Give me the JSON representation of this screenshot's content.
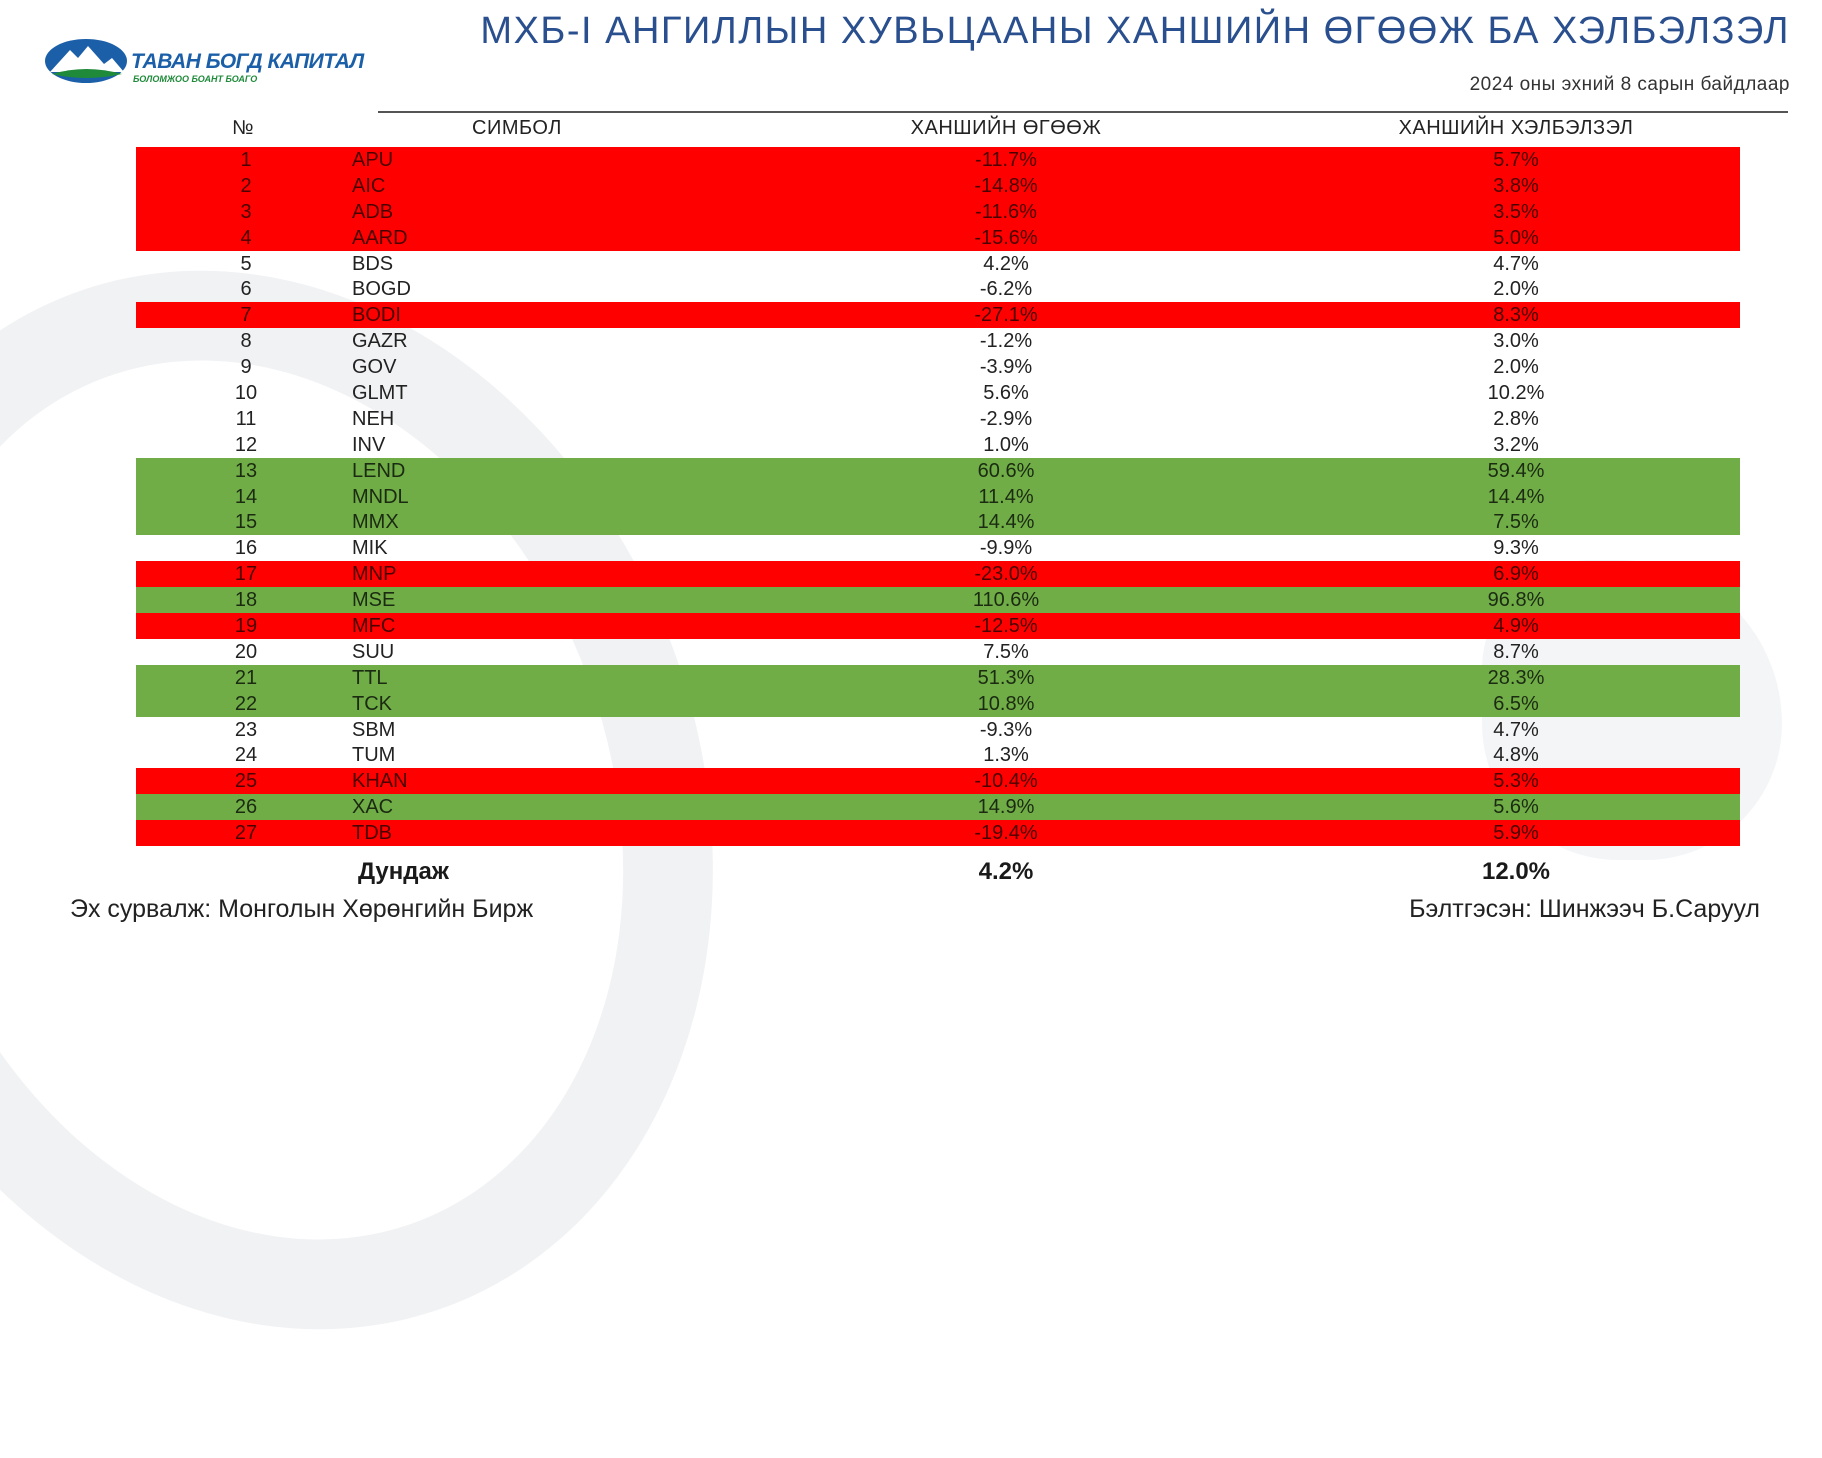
{
  "logo": {
    "brand": "ТАВАН БОГД КАПИТАЛ",
    "tagline": "БОЛОМЖОО БОАНТ БОАГО",
    "icon": "mountain-logo-icon"
  },
  "title": "МХБ-I АНГИЛЛЫН ХУВЬЦААНЫ ХАНШИЙН ӨГӨӨЖ БА ХЭЛБЭЛЗЭЛ",
  "subtitle": "2024 оны эхний 8 сарын байдлаар",
  "headers": {
    "num": "№",
    "symbol": "СИМБОЛ",
    "return": "ХАНШИЙН ӨГӨӨЖ",
    "volatility": "ХАНШИЙН ХЭЛБЭЛЗЭЛ"
  },
  "colors": {
    "red": "#ff0000",
    "green": "#70ad47",
    "title": "#2a4f8f"
  },
  "rows": [
    {
      "num": "1",
      "symbol": "APU",
      "return": "-11.7%",
      "volatility": "5.7%",
      "color": "red"
    },
    {
      "num": "2",
      "symbol": "AIC",
      "return": "-14.8%",
      "volatility": "3.8%",
      "color": "red"
    },
    {
      "num": "3",
      "symbol": "ADB",
      "return": "-11.6%",
      "volatility": "3.5%",
      "color": "red"
    },
    {
      "num": "4",
      "symbol": "AARD",
      "return": "-15.6%",
      "volatility": "5.0%",
      "color": "red"
    },
    {
      "num": "5",
      "symbol": "BDS",
      "return": "4.2%",
      "volatility": "4.7%",
      "color": "white"
    },
    {
      "num": "6",
      "symbol": "BOGD",
      "return": "-6.2%",
      "volatility": "2.0%",
      "color": "white"
    },
    {
      "num": "7",
      "symbol": "BODI",
      "return": "-27.1%",
      "volatility": "8.3%",
      "color": "red"
    },
    {
      "num": "8",
      "symbol": "GAZR",
      "return": "-1.2%",
      "volatility": "3.0%",
      "color": "white"
    },
    {
      "num": "9",
      "symbol": "GOV",
      "return": "-3.9%",
      "volatility": "2.0%",
      "color": "white"
    },
    {
      "num": "10",
      "symbol": "GLMT",
      "return": "5.6%",
      "volatility": "10.2%",
      "color": "white"
    },
    {
      "num": "11",
      "symbol": "NEH",
      "return": "-2.9%",
      "volatility": "2.8%",
      "color": "white"
    },
    {
      "num": "12",
      "symbol": "INV",
      "return": "1.0%",
      "volatility": "3.2%",
      "color": "white"
    },
    {
      "num": "13",
      "symbol": "LEND",
      "return": "60.6%",
      "volatility": "59.4%",
      "color": "green"
    },
    {
      "num": "14",
      "symbol": "MNDL",
      "return": "11.4%",
      "volatility": "14.4%",
      "color": "green"
    },
    {
      "num": "15",
      "symbol": "MMX",
      "return": "14.4%",
      "volatility": "7.5%",
      "color": "green"
    },
    {
      "num": "16",
      "symbol": "MIK",
      "return": "-9.9%",
      "volatility": "9.3%",
      "color": "white"
    },
    {
      "num": "17",
      "symbol": "MNP",
      "return": "-23.0%",
      "volatility": "6.9%",
      "color": "red"
    },
    {
      "num": "18",
      "symbol": "MSE",
      "return": "110.6%",
      "volatility": "96.8%",
      "color": "green"
    },
    {
      "num": "19",
      "symbol": "MFC",
      "return": "-12.5%",
      "volatility": "4.9%",
      "color": "red"
    },
    {
      "num": "20",
      "symbol": "SUU",
      "return": "7.5%",
      "volatility": "8.7%",
      "color": "white"
    },
    {
      "num": "21",
      "symbol": "TTL",
      "return": "51.3%",
      "volatility": "28.3%",
      "color": "green"
    },
    {
      "num": "22",
      "symbol": "TCK",
      "return": "10.8%",
      "volatility": "6.5%",
      "color": "green"
    },
    {
      "num": "23",
      "symbol": "SBM",
      "return": "-9.3%",
      "volatility": "4.7%",
      "color": "white"
    },
    {
      "num": "24",
      "symbol": "TUM",
      "return": "1.3%",
      "volatility": "4.8%",
      "color": "white"
    },
    {
      "num": "25",
      "symbol": "KHAN",
      "return": "-10.4%",
      "volatility": "5.3%",
      "color": "red"
    },
    {
      "num": "26",
      "symbol": "XAC",
      "return": "14.9%",
      "volatility": "5.6%",
      "color": "green"
    },
    {
      "num": "27",
      "symbol": "TDB",
      "return": "-19.4%",
      "volatility": "5.9%",
      "color": "red"
    }
  ],
  "average": {
    "label": "Дундаж",
    "return": "4.2%",
    "volatility": "12.0%"
  },
  "footer": {
    "source": "Эх сурвалж: Монголын Хөрөнгийн Бирж",
    "author": "Бэлтгэсэн: Шинжээч Б.Саруул"
  }
}
